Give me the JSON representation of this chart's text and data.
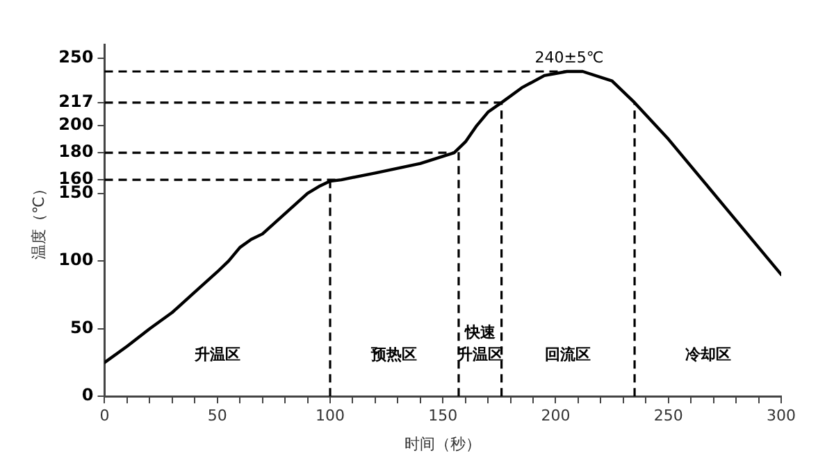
{
  "chart_data": {
    "type": "line",
    "xlabel": "时间（秒）",
    "ylabel": "温度（℃）",
    "x": [
      0,
      10,
      20,
      30,
      40,
      50,
      55,
      60,
      65,
      70,
      80,
      90,
      95,
      100,
      105,
      120,
      140,
      155,
      160,
      165,
      170,
      176,
      185,
      195,
      205,
      212,
      225,
      235,
      250,
      275,
      300
    ],
    "series": [
      {
        "color": "#000000",
        "values": [
          25,
          37,
          50,
          62,
          77,
          92,
          100,
          110,
          116,
          120,
          135,
          150,
          155,
          159,
          160,
          165,
          172,
          180,
          188,
          200,
          210,
          217,
          228,
          237,
          240,
          240,
          233,
          217,
          190,
          140,
          90
        ]
      }
    ],
    "xlim": [
      0,
      300
    ],
    "xticks": [
      0,
      {
        "value": 10,
        "label": null
      },
      {
        "value": 20,
        "label": null
      },
      {
        "value": 30,
        "label": null
      },
      {
        "value": 40,
        "label": null
      },
      50,
      {
        "value": 60,
        "label": null
      },
      {
        "value": 70,
        "label": null
      },
      {
        "value": 80,
        "label": null
      },
      {
        "value": 90,
        "label": null
      },
      100,
      {
        "value": 110,
        "label": null
      },
      {
        "value": 120,
        "label": null
      },
      {
        "value": 130,
        "label": null
      },
      {
        "value": 140,
        "label": null
      },
      150,
      {
        "value": 160,
        "label": null
      },
      {
        "value": 170,
        "label": null
      },
      {
        "value": 180,
        "label": null
      },
      {
        "value": 190,
        "label": null
      },
      200,
      {
        "value": 210,
        "label": null
      },
      {
        "value": 220,
        "label": null
      },
      {
        "value": 230,
        "label": null
      },
      {
        "value": 240,
        "label": null
      },
      250,
      {
        "value": 260,
        "label": null
      },
      {
        "value": 270,
        "label": null
      },
      {
        "value": 280,
        "label": null
      },
      {
        "value": 290,
        "label": null
      },
      300
    ],
    "ylim": [
      0,
      260
    ],
    "yticks": [
      0,
      50,
      100,
      150,
      160,
      180,
      200,
      217,
      250
    ],
    "grid": false,
    "legend": false,
    "marker": "none",
    "line_style": "solid",
    "ref_lines": [
      {
        "axis": "y",
        "value": 160,
        "line_style": "dashed"
      },
      {
        "axis": "y",
        "value": 180,
        "line_style": "dashed"
      },
      {
        "axis": "y",
        "value": 217,
        "line_style": "dashed"
      },
      {
        "axis": "y",
        "value": 240,
        "line_style": "dashed"
      },
      {
        "axis": "x",
        "value": 100,
        "line_style": "dashed"
      },
      {
        "axis": "x",
        "value": 157,
        "line_style": "dashed"
      },
      {
        "axis": "x",
        "value": 176,
        "line_style": "dashed"
      },
      {
        "axis": "x",
        "value": 235,
        "line_style": "dashed"
      }
    ],
    "annotations": [
      {
        "text": "240±5℃",
        "x": 206,
        "y": 240
      },
      "升温区",
      "预热区",
      "快速升温区",
      "回流区",
      "冷却区"
    ]
  }
}
